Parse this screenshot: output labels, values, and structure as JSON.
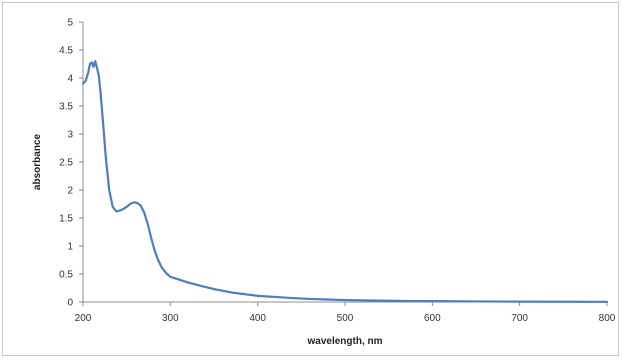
{
  "chart_data": {
    "type": "line",
    "title": "",
    "xlabel": "wavelength, nm",
    "ylabel": "absorbance",
    "xlim": [
      200,
      800
    ],
    "ylim": [
      0,
      5
    ],
    "x_ticks": [
      "200",
      "300",
      "400",
      "500",
      "600",
      "700",
      "800"
    ],
    "y_ticks": [
      "0",
      "0.5",
      "1",
      "1.5",
      "2",
      "2.5",
      "3",
      "3.5",
      "4",
      "4.5",
      "5"
    ],
    "grid": false,
    "legend": "none",
    "series": [
      {
        "color": "#4f7dbd",
        "x": [
          200,
          203,
          206,
          208,
          210,
          212,
          214,
          216,
          218,
          220,
          223,
          226,
          230,
          234,
          238,
          242,
          246,
          250,
          254,
          258,
          262,
          266,
          270,
          274,
          278,
          282,
          286,
          290,
          295,
          300,
          310,
          320,
          330,
          340,
          350,
          360,
          370,
          380,
          390,
          400,
          420,
          440,
          460,
          480,
          500,
          520,
          540,
          560,
          580,
          600,
          650,
          700,
          750,
          800
        ],
        "y": [
          3.9,
          3.95,
          4.1,
          4.25,
          4.28,
          4.2,
          4.3,
          4.18,
          4.05,
          3.75,
          3.2,
          2.6,
          2.0,
          1.7,
          1.62,
          1.63,
          1.66,
          1.7,
          1.75,
          1.78,
          1.77,
          1.72,
          1.6,
          1.4,
          1.15,
          0.92,
          0.75,
          0.62,
          0.52,
          0.45,
          0.4,
          0.35,
          0.31,
          0.27,
          0.23,
          0.2,
          0.17,
          0.15,
          0.13,
          0.11,
          0.09,
          0.07,
          0.055,
          0.045,
          0.035,
          0.03,
          0.025,
          0.02,
          0.017,
          0.015,
          0.01,
          0.007,
          0.005,
          0.003
        ]
      }
    ]
  }
}
